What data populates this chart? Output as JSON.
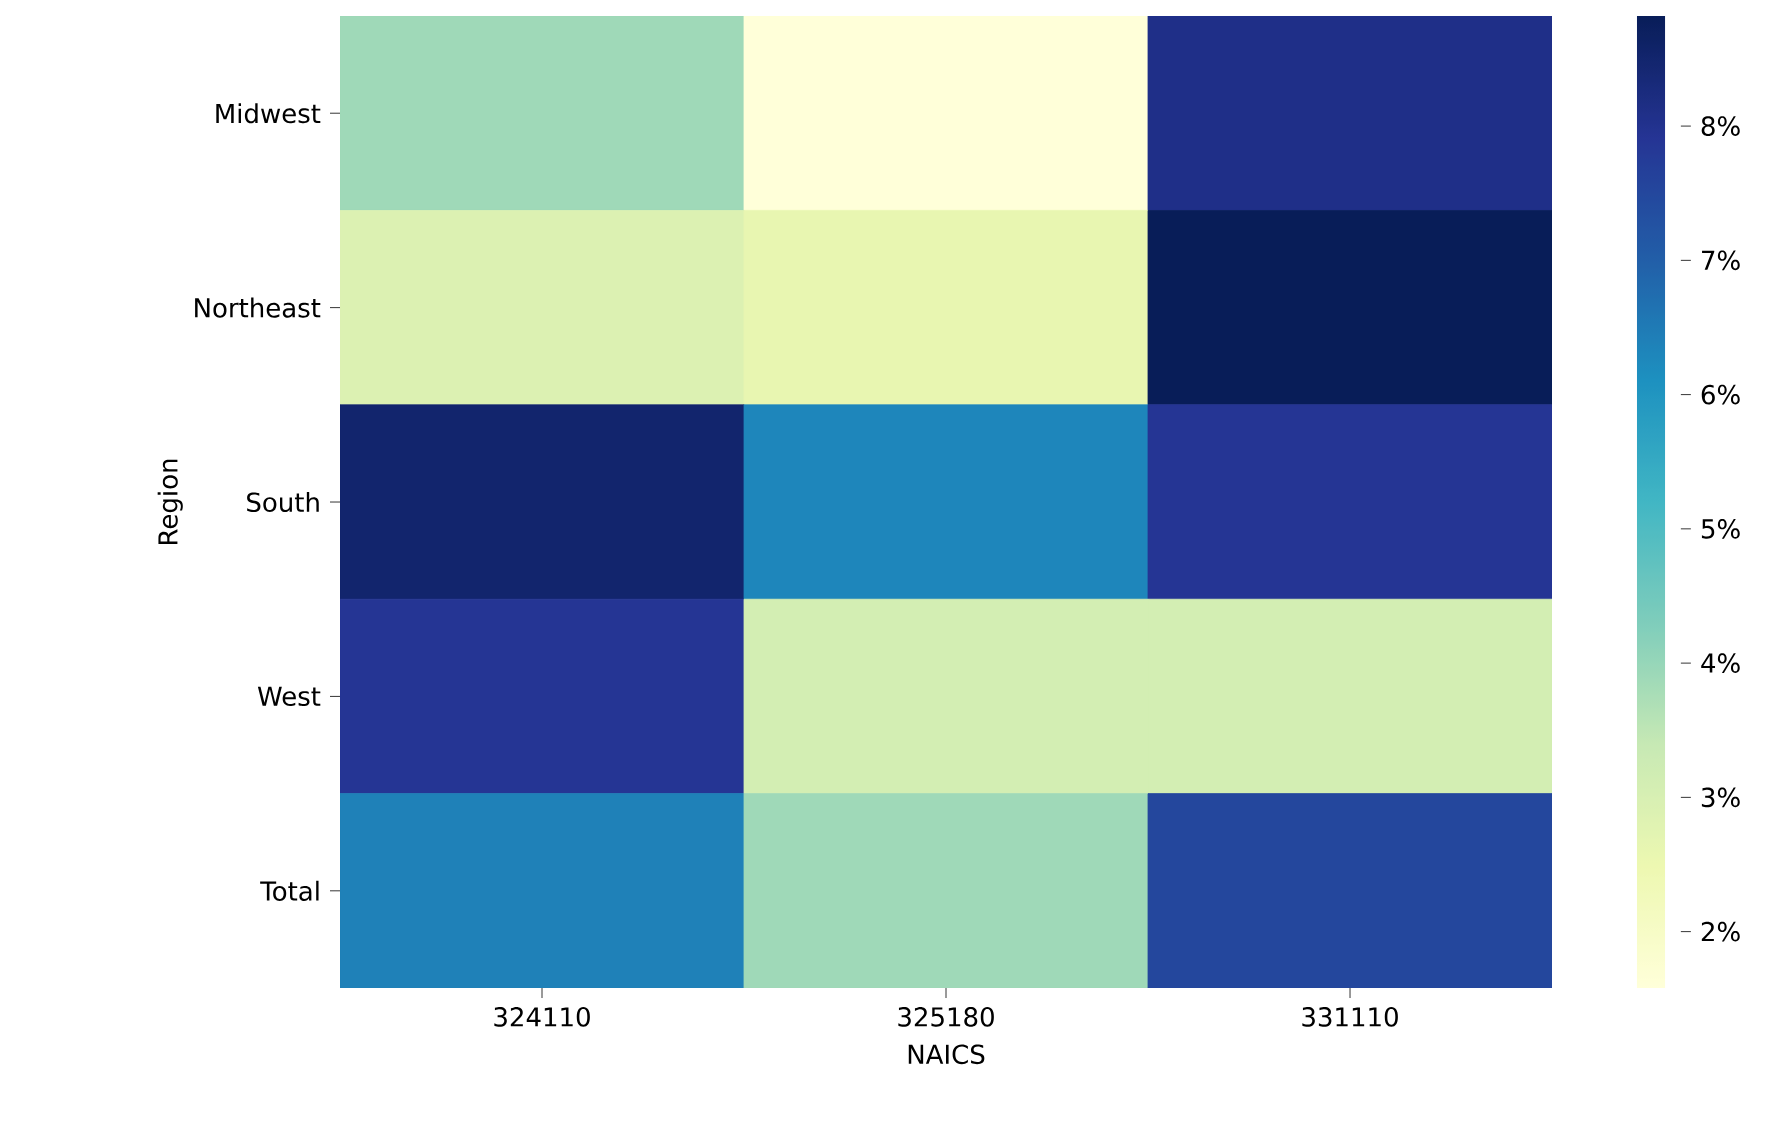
{
  "chart_data": {
    "type": "heatmap",
    "xlabel": "NAICS",
    "ylabel": "Region",
    "categories": [
      "324110",
      "325180",
      "331110"
    ],
    "y_categories": [
      "Midwest",
      "Northeast",
      "South",
      "West",
      "Total"
    ],
    "cells": [
      [
        3.9,
        1.58,
        8.1
      ],
      [
        2.9,
        2.6,
        8.82
      ],
      [
        8.5,
        6.3,
        7.9
      ],
      [
        7.9,
        3.1,
        3.1
      ],
      [
        6.4,
        3.9,
        7.5
      ]
    ],
    "clim": [
      1.58,
      8.82
    ],
    "cticks": [
      {
        "value": 2,
        "label": "2%"
      },
      {
        "value": 3,
        "label": "3%"
      },
      {
        "value": 4,
        "label": "4%"
      },
      {
        "value": 5,
        "label": "5%"
      },
      {
        "value": 6,
        "label": "6%"
      },
      {
        "value": 7,
        "label": "7%"
      },
      {
        "value": 8,
        "label": "8%"
      }
    ]
  }
}
